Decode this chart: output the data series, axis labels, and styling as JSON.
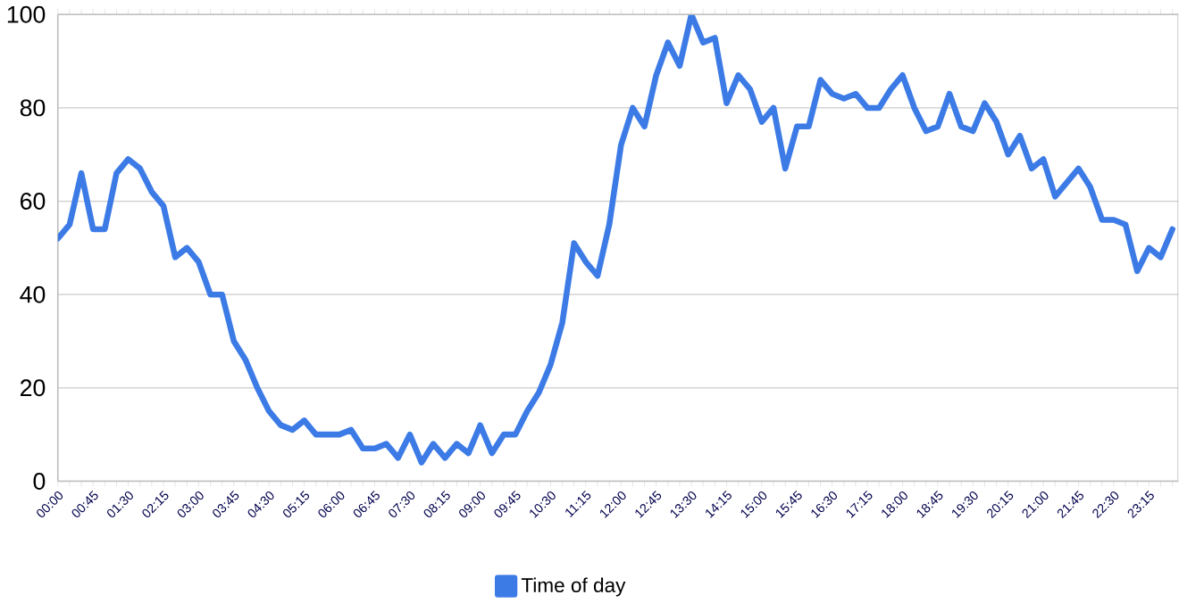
{
  "chart_data": {
    "type": "line",
    "categories": [
      "00:00",
      null,
      null,
      "00:45",
      null,
      null,
      "01:30",
      null,
      null,
      "02:15",
      null,
      null,
      "03:00",
      null,
      null,
      "03:45",
      null,
      null,
      "04:30",
      null,
      null,
      "05:15",
      null,
      null,
      "06:00",
      null,
      null,
      "06:45",
      null,
      null,
      "07:30",
      null,
      null,
      "08:15",
      null,
      null,
      "09:00",
      null,
      null,
      "09:45",
      null,
      null,
      "10:30",
      null,
      null,
      "11:15",
      null,
      null,
      "12:00",
      null,
      null,
      "12:45",
      null,
      null,
      "13:30",
      null,
      null,
      "14:15",
      null,
      null,
      "15:00",
      null,
      null,
      "15:45",
      null,
      null,
      "16:30",
      null,
      null,
      "17:15",
      null,
      null,
      "18:00",
      null,
      null,
      "18:45",
      null,
      null,
      "19:30",
      null,
      null,
      "20:15",
      null,
      null,
      "21:00",
      null,
      null,
      "21:45",
      null,
      null,
      "22:30",
      null,
      null,
      "23:15",
      null,
      null
    ],
    "series": [
      {
        "name": "Time of day",
        "color": "#3c7be6",
        "values": [
          52,
          55,
          66,
          54,
          54,
          66,
          69,
          67,
          62,
          59,
          48,
          50,
          47,
          40,
          40,
          30,
          26,
          20,
          15,
          12,
          11,
          13,
          10,
          10,
          10,
          11,
          7,
          7,
          8,
          5,
          10,
          4,
          8,
          5,
          8,
          6,
          12,
          6,
          10,
          10,
          15,
          19,
          25,
          34,
          51,
          47,
          44,
          55,
          72,
          80,
          76,
          87,
          94,
          89,
          100,
          94,
          95,
          81,
          87,
          84,
          77,
          80,
          67,
          76,
          76,
          86,
          83,
          82,
          83,
          80,
          80,
          84,
          87,
          80,
          75,
          76,
          83,
          76,
          75,
          81,
          77,
          70,
          74,
          67,
          69,
          61,
          64,
          67,
          63,
          56,
          56,
          55,
          45,
          50,
          48,
          54
        ]
      }
    ],
    "ylim": [
      0,
      100
    ],
    "yticks": [
      0,
      20,
      40,
      60,
      80,
      100
    ],
    "grid": "y",
    "legend": "bottom",
    "marker": "none",
    "line_style": "solid"
  }
}
